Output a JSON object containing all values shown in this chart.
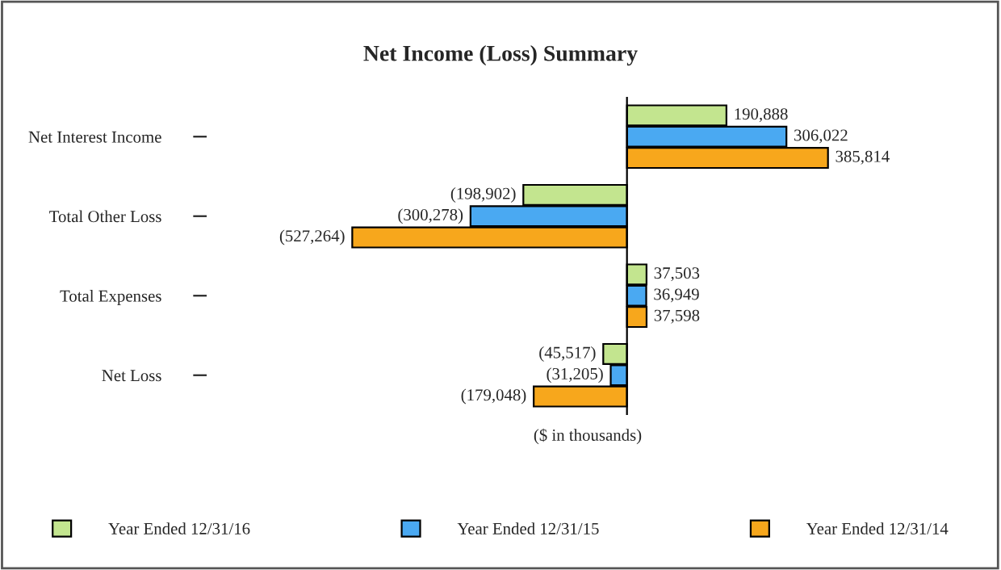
{
  "chart_data": {
    "type": "bar",
    "orientation": "horizontal",
    "title": "Net Income (Loss) Summary",
    "xlabel": "($ in thousands)",
    "categories": [
      "Net Interest Income",
      "Total Other Loss",
      "Total Expenses",
      "Net Loss"
    ],
    "series": [
      {
        "name": "Year Ended 12/31/16",
        "color": "#c3e58f",
        "values": [
          190888,
          -198902,
          37503,
          -45517
        ],
        "value_labels": [
          "190,888",
          "(198,902)",
          "37,503",
          "(45,517)"
        ]
      },
      {
        "name": "Year Ended 12/31/15",
        "color": "#4aa9f2",
        "values": [
          306022,
          -300278,
          36949,
          -31205
        ],
        "value_labels": [
          "306,022",
          "(300,278)",
          "36,949",
          "(31,205)"
        ]
      },
      {
        "name": "Year Ended 12/31/14",
        "color": "#f7a71c",
        "values": [
          385814,
          -527264,
          37598,
          -179048
        ],
        "value_labels": [
          "385,814",
          "(527,264)",
          "37,598",
          "(179,048)"
        ]
      }
    ],
    "legend": "bottom",
    "grid": false
  }
}
